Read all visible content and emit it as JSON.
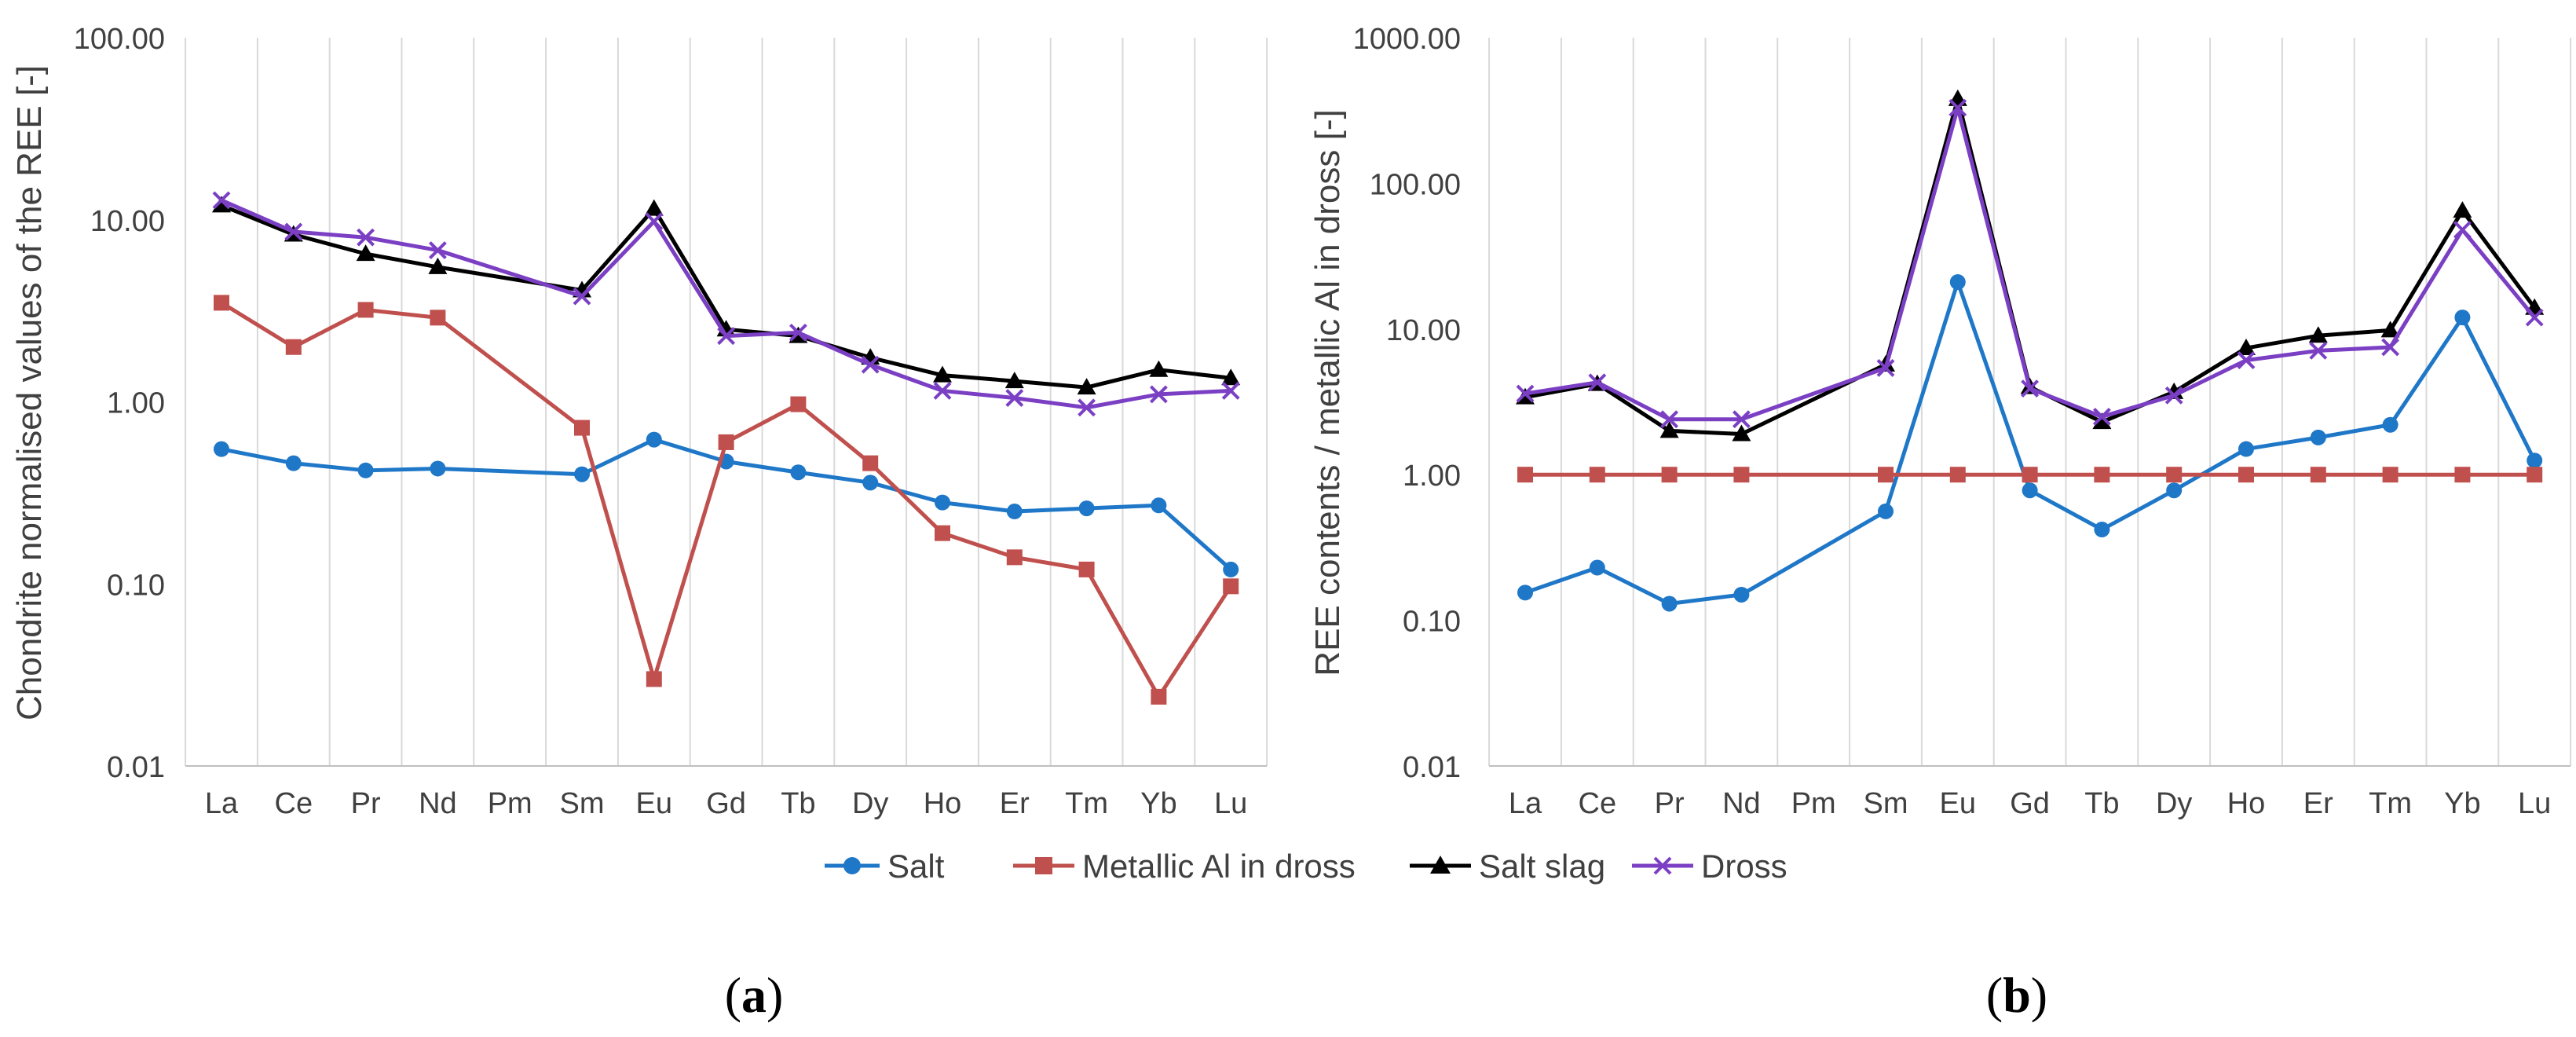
{
  "chart_data": [
    {
      "type": "line",
      "panel_label": "(a)",
      "panel_letter": "a",
      "title": "",
      "xlabel": "",
      "ylabel": "Chondrite normalised values of the REE [-]",
      "yscale": "log",
      "ylim": [
        0.01,
        100
      ],
      "yticks": [
        "0.01",
        "0.10",
        "1.00",
        "10.00",
        "100.00"
      ],
      "grid": "vertical",
      "categories": [
        "La",
        "Ce",
        "Pr",
        "Nd",
        "Pm",
        "Sm",
        "Eu",
        "Gd",
        "Tb",
        "Dy",
        "Ho",
        "Er",
        "Tm",
        "Yb",
        "Lu"
      ],
      "series": [
        {
          "name": "Salt",
          "values": [
            0.55,
            0.46,
            0.42,
            0.43,
            null,
            0.4,
            0.62,
            0.47,
            0.41,
            0.36,
            0.28,
            0.25,
            0.26,
            0.27,
            0.12
          ]
        },
        {
          "name": "Metallic Al in dross",
          "values": [
            3.5,
            2.0,
            3.2,
            2.9,
            null,
            0.72,
            0.03,
            0.6,
            0.97,
            0.46,
            0.19,
            0.14,
            0.12,
            0.024,
            0.097
          ]
        },
        {
          "name": "Salt slag",
          "values": [
            12.0,
            8.3,
            6.5,
            5.5,
            null,
            4.1,
            11.5,
            2.5,
            2.3,
            1.75,
            1.4,
            1.3,
            1.2,
            1.5,
            1.35
          ]
        },
        {
          "name": "Dross",
          "values": [
            12.8,
            8.6,
            8.0,
            6.8,
            null,
            3.8,
            9.8,
            2.3,
            2.4,
            1.6,
            1.15,
            1.05,
            0.93,
            1.1,
            1.15
          ]
        }
      ]
    },
    {
      "type": "line",
      "panel_label": "(b)",
      "panel_letter": "b",
      "title": "",
      "xlabel": "",
      "ylabel": "REE contents / metallic Al in dross [-]",
      "yscale": "log",
      "ylim": [
        0.01,
        1000
      ],
      "yticks": [
        "0.01",
        "0.10",
        "1.00",
        "10.00",
        "100.00",
        "1000.00"
      ],
      "grid": "vertical",
      "categories": [
        "La",
        "Ce",
        "Pr",
        "Nd",
        "Pm",
        "Sm",
        "Eu",
        "Gd",
        "Tb",
        "Dy",
        "Ho",
        "Er",
        "Tm",
        "Yb",
        "Lu"
      ],
      "series": [
        {
          "name": "Salt",
          "values": [
            0.155,
            0.23,
            0.13,
            0.15,
            null,
            0.56,
            21,
            0.78,
            0.42,
            0.78,
            1.5,
            1.8,
            2.2,
            12,
            1.25
          ]
        },
        {
          "name": "Metallic Al in dross",
          "values": [
            1,
            1,
            1,
            1,
            null,
            1,
            1,
            1,
            1,
            1,
            1,
            1,
            1,
            1,
            1
          ]
        },
        {
          "name": "Salt slag",
          "values": [
            3.4,
            4.2,
            2.0,
            1.9,
            null,
            5.7,
            380,
            4.0,
            2.3,
            3.7,
            7.4,
            9.0,
            9.8,
            65,
            14
          ]
        },
        {
          "name": "Dross",
          "values": [
            3.6,
            4.3,
            2.4,
            2.4,
            null,
            5.4,
            330,
            3.9,
            2.5,
            3.5,
            6.1,
            7.1,
            7.5,
            48,
            12
          ]
        }
      ]
    }
  ],
  "legend": {
    "placement": "bottom-center",
    "items": [
      {
        "label": "Salt",
        "color": "#1f77c8",
        "marker": "circle"
      },
      {
        "label": "Metallic Al in dross",
        "color": "#c0504d",
        "marker": "square"
      },
      {
        "label": "Salt slag",
        "color": "#000000",
        "marker": "triangle"
      },
      {
        "label": "Dross",
        "color": "#7b3fc4",
        "marker": "x"
      }
    ]
  },
  "colors": {
    "salt": "#1f77c8",
    "metallic_al": "#c0504d",
    "salt_slag": "#000000",
    "dross": "#7b3fc4",
    "gridline": "#d9d9d9",
    "axis": "#bfbfbf",
    "text": "#404040"
  }
}
